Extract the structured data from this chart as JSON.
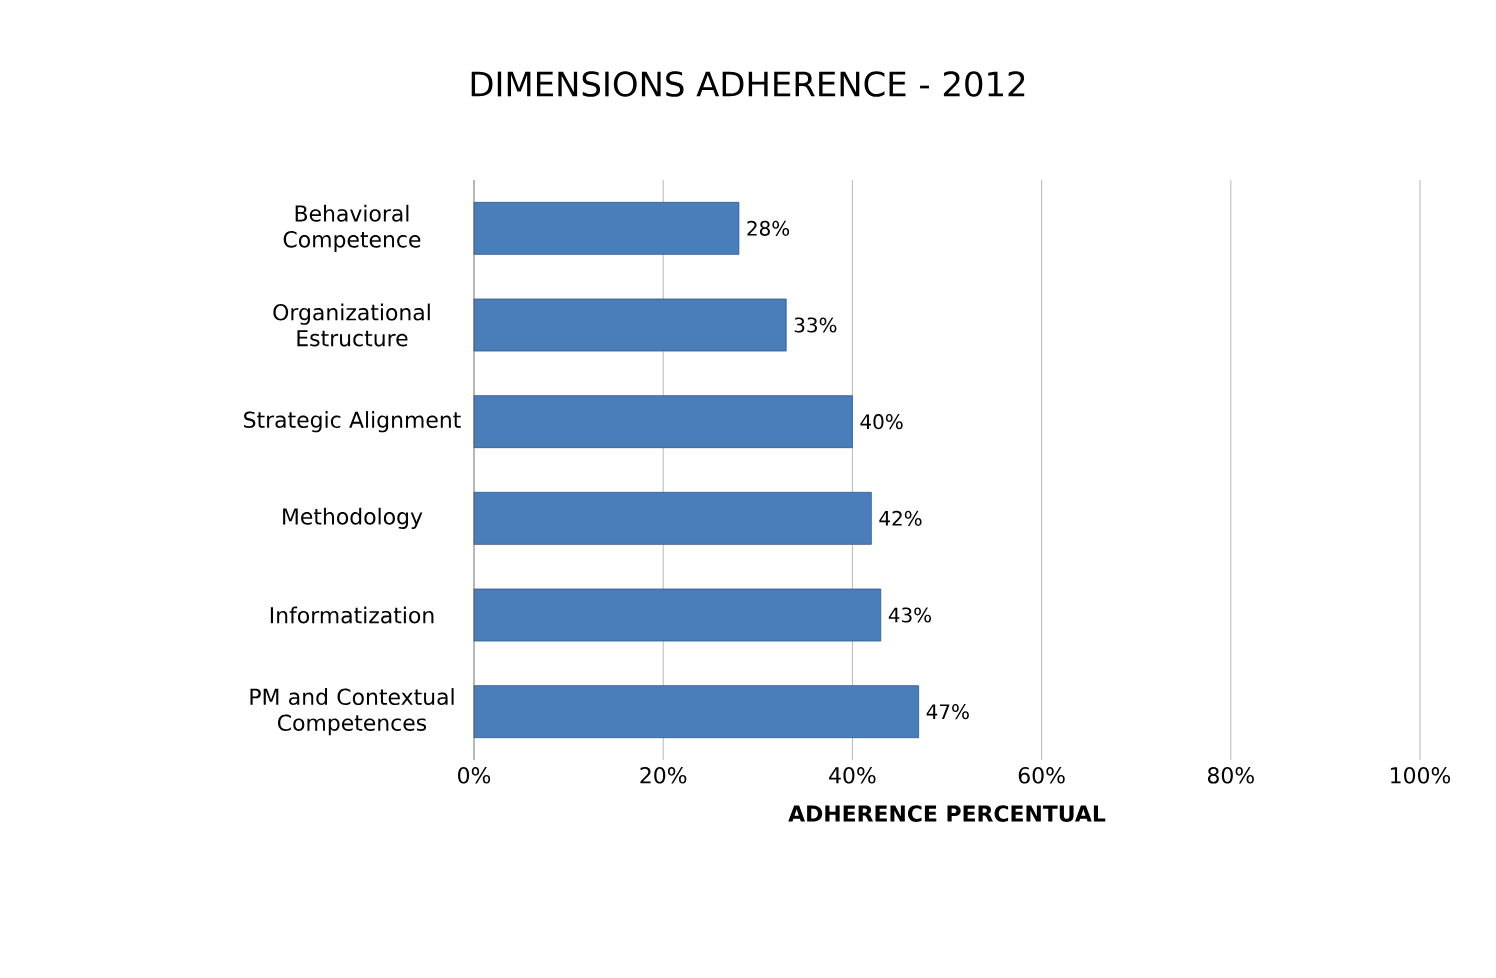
{
  "chart_data": {
    "type": "bar",
    "orientation": "horizontal",
    "title": "DIMENSIONS ADHERENCE - 2012",
    "xlabel": "ADHERENCE PERCENTUAL",
    "categories": [
      "Behavioral Competence",
      "Organizational Estructure",
      "Strategic Alignment",
      "Methodology",
      "Informatization",
      "PM and Contextual Competences"
    ],
    "values": [
      28,
      33,
      40,
      42,
      43,
      47
    ],
    "value_labels": [
      "28%",
      "33%",
      "40%",
      "42%",
      "43%",
      "47%"
    ],
    "color": "#4a7ebb",
    "xlim": [
      0,
      100
    ],
    "xticks": [
      {
        "value": 0,
        "label": "0%"
      },
      {
        "value": 20,
        "label": "20%"
      },
      {
        "value": 40,
        "label": "40%"
      },
      {
        "value": 60,
        "label": "60%"
      },
      {
        "value": 80,
        "label": "80%"
      },
      {
        "value": 100,
        "label": "100%"
      }
    ],
    "grid": "x"
  }
}
